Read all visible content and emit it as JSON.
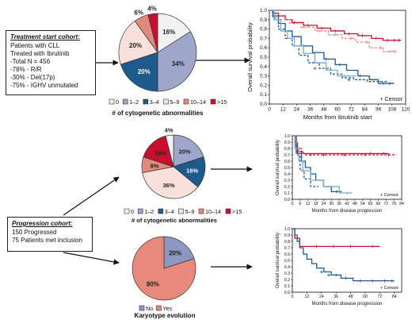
{
  "colors": {
    "n0": "#f2f2f2",
    "n12": "#9ea7c9",
    "n34": "#1f5a8c",
    "n59": "#fae0da",
    "n1014": "#e08a7e",
    "n15": "#c8102e",
    "no": "#8e96c2",
    "yes": "#e8897c",
    "curve_light_blue": "#7fa6cb",
    "curve_dark_blue": "#1f5a8c",
    "curve_pink": "#e28a82",
    "curve_red": "#c8102e"
  },
  "treatment_cohort": {
    "title": "Treatment start cohort:",
    "lines": [
      "Patients with CLL",
      "Treated with Ibrutinib",
      "-Total N = 456",
      "-78% - R/R",
      "-30% - Del(17p)",
      "-75% - IGHV unmutated"
    ]
  },
  "progression_cohort": {
    "title": "Progression cohort:",
    "lines": [
      "150 Progressed",
      "75 Patients met inclusion"
    ]
  },
  "legend_six": [
    "0",
    "1–2",
    "3–4",
    "5–9",
    "10–14",
    ">15"
  ],
  "legend_two": [
    "No",
    "Yes"
  ],
  "pie1": {
    "caption": "# of cytogenetic abnormalities",
    "slices": [
      {
        "label": "16%",
        "value": 16
      },
      {
        "label": "34%",
        "value": 34
      },
      {
        "label": "20%",
        "value": 20
      },
      {
        "label": "20%",
        "value": 20
      },
      {
        "label": "6%",
        "value": 6
      },
      {
        "label": "4%",
        "value": 4
      }
    ]
  },
  "pie2": {
    "caption": "# of cytogenetic abnormalities",
    "slices": [
      {
        "label": "20%",
        "value": 20
      },
      {
        "label": "16%",
        "value": 16
      },
      {
        "label": "36%",
        "value": 36
      },
      {
        "label": "8%",
        "value": 8
      },
      {
        "label": "16%",
        "value": 16
      },
      {
        "label": "4%",
        "value": 4
      }
    ]
  },
  "pie3": {
    "caption": "Karyotype evolution",
    "slices": [
      {
        "label": "20%",
        "value": 20
      },
      {
        "label": "80%",
        "value": 80
      }
    ]
  },
  "km1": {
    "ylabel": "Overall survival probability",
    "xlabel": "Months from ibrutinib start",
    "yticks": [
      "0.0",
      "0.1",
      "0.2",
      "0.3",
      "0.4",
      "0.5",
      "0.6",
      "0.7",
      "0.8",
      "0.9",
      "1.0"
    ],
    "xticks": [
      "0",
      "12",
      "24",
      "36",
      "48",
      "60",
      "72",
      "84",
      "96",
      "108",
      "120"
    ],
    "censor": "Censor"
  },
  "km2": {
    "ylabel": "Overall survival probability",
    "xlabel": "Months from disease progression",
    "yticks": [
      "0.0",
      "0.1",
      "0.2",
      "0.3",
      "0.4",
      "0.5",
      "0.6",
      "0.7",
      "0.8",
      "0.9",
      "1.0"
    ],
    "xticks": [
      "0",
      "6",
      "12",
      "18",
      "24",
      "30",
      "36",
      "42",
      "48",
      "54",
      "60",
      "66",
      "72",
      "78",
      "84"
    ],
    "censor": "Censor"
  },
  "km3": {
    "ylabel": "Overall survival probability",
    "xlabel": "Months from disease progression",
    "yticks": [
      "0.0",
      "0.1",
      "0.2",
      "0.3",
      "0.4",
      "0.5",
      "0.6",
      "0.7",
      "0.8",
      "0.9",
      "1.0"
    ],
    "xticks": [
      "0",
      "12",
      "24",
      "36",
      "48",
      "60",
      "72",
      "84"
    ],
    "censor": "Censor"
  }
}
